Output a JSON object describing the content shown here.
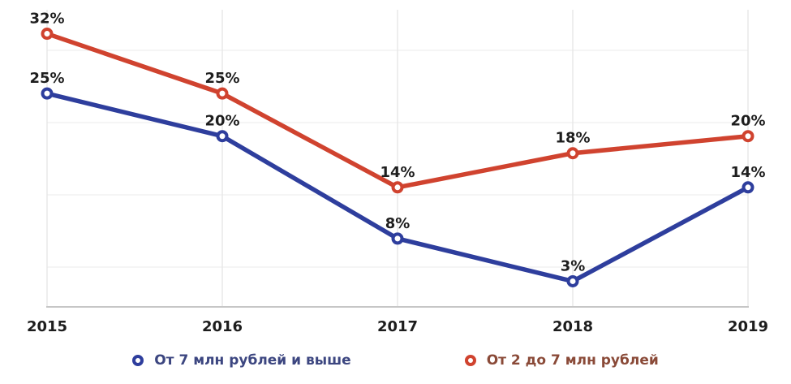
{
  "chart_data": {
    "type": "line",
    "categories": [
      "2015",
      "2016",
      "2017",
      "2018",
      "2019"
    ],
    "series": [
      {
        "name": "От 7 млн рублей и выше",
        "values": [
          25,
          20,
          8,
          3,
          14
        ],
        "labels": [
          "25%",
          "20%",
          "8%",
          "3%",
          "14%"
        ],
        "color": "#2e3e9d",
        "legend_text_color": "#3c4680"
      },
      {
        "name": "От 2 до 7 млн рублей",
        "values": [
          32,
          25,
          14,
          18,
          20
        ],
        "labels": [
          "32%",
          "25%",
          "14%",
          "18%",
          "20%"
        ],
        "color": "#d0432f",
        "legend_text_color": "#8a4a38"
      }
    ],
    "title": "",
    "xlabel": "",
    "ylabel": "",
    "ylim": [
      0,
      35
    ],
    "value_suffix": "%",
    "grid": true,
    "legend_position": "bottom",
    "colors": {
      "value_label": "#1e1e1e",
      "axis_text": "#1d1d1d",
      "axis_line": "#c6c6c6",
      "grid_vertical": "#e8e8e8",
      "grid_horizontal": "#f2f2f2",
      "background": "#ffffff",
      "marker_fill": "#ffffff"
    }
  }
}
